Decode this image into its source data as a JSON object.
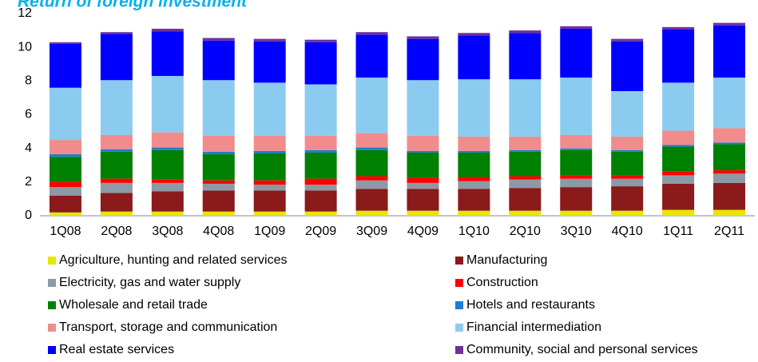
{
  "chart_data": {
    "type": "stacked_bar",
    "title": "Return of foreign investment",
    "categories": [
      "1Q08",
      "2Q08",
      "3Q08",
      "4Q08",
      "1Q09",
      "2Q09",
      "3Q09",
      "4Q09",
      "1Q10",
      "2Q10",
      "3Q10",
      "4Q10",
      "1Q11",
      "2Q11"
    ],
    "series": [
      {
        "name": "Agriculture, hunting and related services",
        "color": "#e6e600",
        "values": [
          0.2,
          0.25,
          0.25,
          0.25,
          0.25,
          0.25,
          0.3,
          0.3,
          0.3,
          0.3,
          0.3,
          0.3,
          0.35,
          0.35
        ]
      },
      {
        "name": "Manufacturing",
        "color": "#8b1a1a",
        "values": [
          1.0,
          1.1,
          1.2,
          1.25,
          1.25,
          1.25,
          1.3,
          1.3,
          1.3,
          1.35,
          1.4,
          1.45,
          1.55,
          1.6
        ]
      },
      {
        "name": "Electricity, gas and water supply",
        "color": "#8c99a6",
        "values": [
          0.5,
          0.6,
          0.5,
          0.4,
          0.35,
          0.35,
          0.5,
          0.35,
          0.45,
          0.5,
          0.5,
          0.45,
          0.5,
          0.55
        ]
      },
      {
        "name": "Construction",
        "color": "#ff0000",
        "values": [
          0.3,
          0.25,
          0.2,
          0.2,
          0.25,
          0.35,
          0.25,
          0.3,
          0.25,
          0.2,
          0.2,
          0.2,
          0.25,
          0.2
        ]
      },
      {
        "name": "Wholesale and retail trade",
        "color": "#008000",
        "values": [
          1.5,
          1.6,
          1.75,
          1.55,
          1.6,
          1.55,
          1.55,
          1.5,
          1.45,
          1.45,
          1.5,
          1.4,
          1.45,
          1.55
        ]
      },
      {
        "name": "Hotels and restaurants",
        "color": "#1f7ccf",
        "values": [
          0.15,
          0.15,
          0.15,
          0.15,
          0.15,
          0.15,
          0.15,
          0.1,
          0.1,
          0.1,
          0.1,
          0.1,
          0.1,
          0.1
        ]
      },
      {
        "name": "Transport, storage and communication",
        "color": "#f08c8c",
        "values": [
          0.85,
          0.85,
          0.9,
          0.95,
          0.9,
          0.85,
          0.85,
          0.9,
          0.85,
          0.8,
          0.8,
          0.8,
          0.85,
          0.85
        ]
      },
      {
        "name": "Financial intermediation",
        "color": "#8ccbf0",
        "values": [
          3.1,
          3.25,
          3.35,
          3.3,
          3.15,
          3.05,
          3.3,
          3.3,
          3.4,
          3.4,
          3.4,
          2.7,
          2.85,
          3.0
        ]
      },
      {
        "name": "Real estate services",
        "color": "#0000ff",
        "values": [
          2.6,
          2.75,
          2.65,
          2.35,
          2.45,
          2.5,
          2.55,
          2.45,
          2.6,
          2.75,
          2.9,
          2.95,
          3.15,
          3.1
        ]
      },
      {
        "name": "Community, social and personal services",
        "color": "#7030a0",
        "values": [
          0.1,
          0.1,
          0.15,
          0.15,
          0.15,
          0.15,
          0.15,
          0.15,
          0.15,
          0.15,
          0.15,
          0.15,
          0.15,
          0.15
        ]
      }
    ],
    "ylim": [
      0,
      12
    ],
    "yticks": [
      0,
      2,
      4,
      6,
      8,
      10,
      12
    ],
    "grid": false
  }
}
